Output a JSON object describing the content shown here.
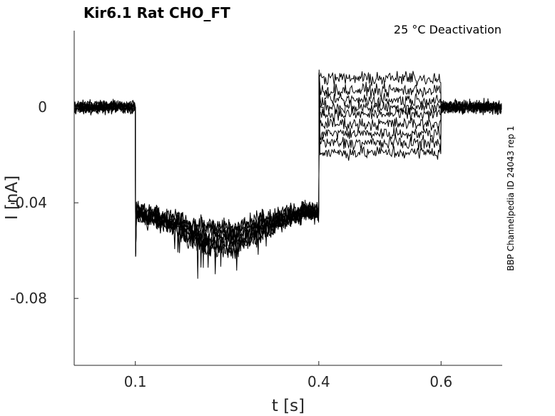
{
  "chart_data": {
    "type": "line",
    "title": "Kir6.1  Rat  CHO_FT",
    "subtitle": "25 °C  Deactivation",
    "side_label": "BBP Channelpedia ID 24043 rep 1",
    "xlabel": "t [s]",
    "ylabel": "I [nA]",
    "xlim": [
      0.0,
      0.7
    ],
    "ylim": [
      -0.108,
      0.032
    ],
    "x_ticks": [
      {
        "value": 0.1,
        "label": "0.1"
      },
      {
        "value": 0.4,
        "label": "0.4"
      },
      {
        "value": 0.6,
        "label": "0.6"
      }
    ],
    "y_ticks": [
      {
        "value": 0.0,
        "label": "0"
      },
      {
        "value": -0.04,
        "label": "-0.04"
      },
      {
        "value": -0.08,
        "label": "-0.08"
      }
    ],
    "grid": false,
    "line_color": "#000000",
    "segments": [
      {
        "start": 0.0,
        "end": 0.1,
        "level": 0.0
      },
      {
        "start": 0.1,
        "end": 0.4,
        "level": -0.043,
        "transient": -0.062
      },
      {
        "start": 0.4,
        "end": 0.6,
        "levels": [
          0.012,
          0.007,
          0.003,
          0.0,
          -0.003,
          -0.007,
          -0.011,
          -0.015,
          -0.019
        ],
        "transient": 0.014
      },
      {
        "start": 0.6,
        "end": 0.7,
        "level": 0.0
      }
    ],
    "noise_amplitude": 0.004
  }
}
